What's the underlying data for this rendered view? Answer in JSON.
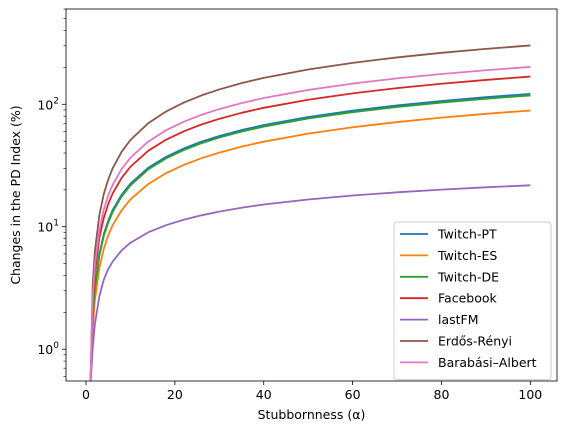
{
  "chart_data": {
    "type": "line",
    "title": "",
    "xlabel": "Stubbornness (α)",
    "ylabel": "Changes in the PD Index (%)",
    "xlim": [
      -4.5,
      106
    ],
    "ylim": [
      0.55,
      600
    ],
    "yscale": "log",
    "x_ticks": [
      0,
      20,
      40,
      60,
      80,
      100
    ],
    "y_ticks": [
      {
        "value": 1,
        "base": "10",
        "exp": "0"
      },
      {
        "value": 10,
        "base": "10",
        "exp": "1"
      },
      {
        "value": 100,
        "base": "10",
        "exp": "2"
      }
    ],
    "grid": false,
    "legend_position": "lower right",
    "x": [
      1,
      1.5,
      2,
      3,
      4,
      5,
      6,
      8,
      10,
      14,
      18,
      22,
      26,
      30,
      35,
      40,
      50,
      60,
      70,
      80,
      90,
      100
    ],
    "series": [
      {
        "name": "Twitch-PT",
        "color": "#1f77b4",
        "values": [
          0.5,
          1.8,
          3.2,
          6.0,
          8.7,
          11.2,
          13.7,
          18.2,
          22.5,
          30.3,
          37.2,
          43.6,
          49.6,
          55.1,
          61.6,
          67.7,
          78.8,
          88.8,
          97.9,
          106.4,
          114.3,
          121.7
        ]
      },
      {
        "name": "Twitch-ES",
        "color": "#ff7f0e",
        "values": [
          0.5,
          1.45,
          2.5,
          4.6,
          6.6,
          8.5,
          10.3,
          13.6,
          16.7,
          22.3,
          27.4,
          32.0,
          36.3,
          40.3,
          45.1,
          49.5,
          57.6,
          64.9,
          71.6,
          77.8,
          83.6,
          89.0
        ]
      },
      {
        "name": "Twitch-DE",
        "color": "#2ca02c",
        "values": [
          0.5,
          1.75,
          3.1,
          5.8,
          8.4,
          10.8,
          13.2,
          17.6,
          21.8,
          29.4,
          36.1,
          42.3,
          48.1,
          53.5,
          59.8,
          65.7,
          76.5,
          86.2,
          95.1,
          103.3,
          111.0,
          118.1
        ]
      },
      {
        "name": "Facebook",
        "color": "#d62728",
        "values": [
          0.5,
          2.3,
          4.2,
          8.1,
          11.8,
          15.3,
          18.7,
          25.0,
          30.9,
          41.7,
          51.3,
          60.2,
          68.4,
          76.1,
          85.2,
          93.6,
          109.0,
          122.8,
          135.5,
          147.2,
          158.1,
          168.4
        ]
      },
      {
        "name": "lastFM",
        "color": "#9467bd",
        "values": [
          0.5,
          1.0,
          1.6,
          2.7,
          3.7,
          4.5,
          5.2,
          6.4,
          7.4,
          9.0,
          10.3,
          11.4,
          12.4,
          13.3,
          14.3,
          15.2,
          16.7,
          18.0,
          19.1,
          20.1,
          21.0,
          21.8
        ]
      },
      {
        "name": "Erdős-Rényi",
        "color": "#8c564b",
        "values": [
          0.5,
          3.3,
          6.3,
          12.4,
          18.5,
          24.3,
          30.0,
          40.8,
          51.1,
          70.0,
          87.3,
          103.3,
          118.2,
          132.2,
          148.8,
          164.2,
          192.5,
          218.0,
          241.4,
          263.2,
          283.4,
          302.4
        ]
      },
      {
        "name": "Barabási–Albert",
        "color": "#e377c2",
        "values": [
          0.5,
          2.6,
          4.9,
          9.4,
          13.8,
          18.0,
          22.0,
          29.5,
          36.6,
          49.6,
          61.3,
          72.1,
          82.1,
          91.4,
          102.3,
          112.5,
          131.0,
          147.6,
          162.7,
          176.7,
          189.7,
          201.9
        ]
      }
    ]
  }
}
